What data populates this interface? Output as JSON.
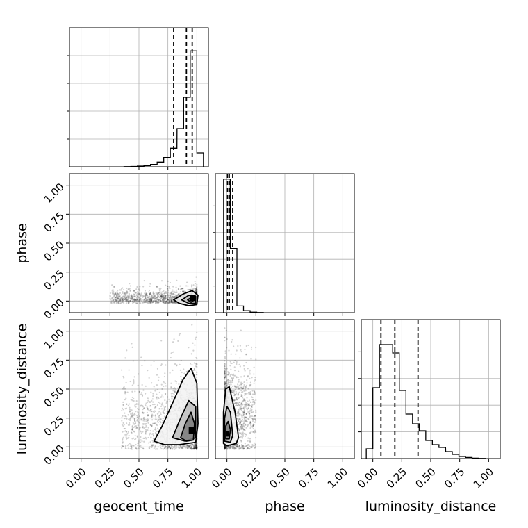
{
  "chart_data": {
    "type": "corner",
    "parameters": [
      "geocent_time",
      "phase",
      "luminosity_distance"
    ],
    "ticks": [
      0.0,
      0.25,
      0.5,
      0.75,
      1.0
    ],
    "tick_labels": [
      "0.00",
      "0.25",
      "0.50",
      "0.75",
      "1.00"
    ],
    "range": [
      -0.1,
      1.1
    ],
    "grid": true,
    "histograms": [
      {
        "parameter": "geocent_time",
        "bin_width": 0.0571,
        "bins": [
          {
            "x0": 0.371,
            "count": 0.001
          },
          {
            "x0": 0.429,
            "count": 0.003
          },
          {
            "x0": 0.486,
            "count": 0.006
          },
          {
            "x0": 0.543,
            "count": 0.01
          },
          {
            "x0": 0.6,
            "count": 0.02
          },
          {
            "x0": 0.657,
            "count": 0.04
          },
          {
            "x0": 0.714,
            "count": 0.08
          },
          {
            "x0": 0.771,
            "count": 0.16
          },
          {
            "x0": 0.829,
            "count": 0.33
          },
          {
            "x0": 0.886,
            "count": 0.6
          },
          {
            "x0": 0.943,
            "count": 1.0
          },
          {
            "x0": 1.0,
            "count": 0.12
          }
        ],
        "ymax": 1.2,
        "quantiles": [
          0.8,
          0.91,
          0.96
        ]
      },
      {
        "parameter": "phase",
        "bin_width": 0.0571,
        "bins": [
          {
            "x0": -0.029,
            "count": 1.0
          },
          {
            "x0": 0.029,
            "count": 0.48
          },
          {
            "x0": 0.086,
            "count": 0.05
          },
          {
            "x0": 0.143,
            "count": 0.015
          },
          {
            "x0": 0.2,
            "count": 0.004
          },
          {
            "x0": 0.257,
            "count": 0.001
          }
        ],
        "ymax": 1.04,
        "quantiles": [
          0.005,
          0.02,
          0.05
        ]
      },
      {
        "parameter": "luminosity_distance",
        "bin_width": 0.0571,
        "bins": [
          {
            "x0": -0.057,
            "count": 0.07
          },
          {
            "x0": 0.0,
            "count": 0.51
          },
          {
            "x0": 0.057,
            "count": 0.82
          },
          {
            "x0": 0.114,
            "count": 0.82
          },
          {
            "x0": 0.171,
            "count": 0.76
          },
          {
            "x0": 0.229,
            "count": 0.49
          },
          {
            "x0": 0.286,
            "count": 0.32
          },
          {
            "x0": 0.343,
            "count": 0.25
          },
          {
            "x0": 0.4,
            "count": 0.2
          },
          {
            "x0": 0.457,
            "count": 0.13
          },
          {
            "x0": 0.514,
            "count": 0.1
          },
          {
            "x0": 0.571,
            "count": 0.08
          },
          {
            "x0": 0.629,
            "count": 0.05
          },
          {
            "x0": 0.686,
            "count": 0.03
          },
          {
            "x0": 0.743,
            "count": 0.015
          },
          {
            "x0": 0.8,
            "count": 0.008
          },
          {
            "x0": 0.857,
            "count": 0.003
          },
          {
            "x0": 0.914,
            "count": 0.001
          }
        ],
        "ymax": 1.0,
        "quantiles": [
          0.07,
          0.19,
          0.39
        ]
      }
    ],
    "density_panels": [
      {
        "x": "geocent_time",
        "y": "phase",
        "cloud": {
          "x_min": 0.25,
          "x_max": 1.0,
          "x_peak": 0.95,
          "y_center": 0.02,
          "y_spread": 0.06,
          "points": 1400
        },
        "contours": [
          [
            [
              0.8,
              0.01
            ],
            [
              0.88,
              0.06
            ],
            [
              0.96,
              0.09
            ],
            [
              1.01,
              0.05
            ],
            [
              1.0,
              -0.03
            ],
            [
              0.93,
              -0.04
            ],
            [
              0.85,
              -0.02
            ]
          ],
          [
            [
              0.87,
              0.01
            ],
            [
              0.93,
              0.05
            ],
            [
              0.99,
              0.04
            ],
            [
              0.99,
              -0.02
            ],
            [
              0.93,
              -0.02
            ]
          ],
          [
            [
              0.92,
              0.01
            ],
            [
              0.95,
              0.03
            ],
            [
              0.98,
              0.01
            ],
            [
              0.95,
              -0.01
            ]
          ]
        ],
        "core": [
          {
            "x": 0.94,
            "y": 0.0,
            "w": 0.05,
            "h": 0.05
          }
        ]
      },
      {
        "x": "geocent_time",
        "y": "luminosity_distance",
        "cloud": {
          "x_min": 0.35,
          "x_max": 1.0,
          "x_peak": 0.95,
          "y_center": 0.22,
          "y_spread": 0.28,
          "points": 1600
        },
        "contours": [
          [
            [
              0.63,
              0.05
            ],
            [
              0.7,
              0.18
            ],
            [
              0.8,
              0.4
            ],
            [
              0.88,
              0.58
            ],
            [
              0.95,
              0.68
            ],
            [
              1.0,
              0.55
            ],
            [
              1.01,
              0.2
            ],
            [
              0.99,
              0.04
            ],
            [
              0.85,
              0.02
            ],
            [
              0.72,
              0.02
            ]
          ],
          [
            [
              0.79,
              0.08
            ],
            [
              0.86,
              0.25
            ],
            [
              0.93,
              0.4
            ],
            [
              0.99,
              0.35
            ],
            [
              0.99,
              0.08
            ],
            [
              0.9,
              0.05
            ]
          ],
          [
            [
              0.86,
              0.08
            ],
            [
              0.9,
              0.2
            ],
            [
              0.95,
              0.3
            ],
            [
              0.98,
              0.2
            ],
            [
              0.97,
              0.06
            ],
            [
              0.91,
              0.05
            ]
          ]
        ],
        "core": [
          {
            "x": 0.93,
            "y": 0.11,
            "w": 0.05,
            "h": 0.06
          }
        ]
      },
      {
        "x": "phase",
        "y": "luminosity_distance",
        "cloud": {
          "x_min": -0.02,
          "x_max": 0.25,
          "x_peak": 0.0,
          "y_center": 0.28,
          "y_spread": 0.3,
          "points": 1500
        },
        "contours": [
          [
            [
              -0.03,
              0.03
            ],
            [
              -0.03,
              0.3
            ],
            [
              -0.01,
              0.5
            ],
            [
              0.02,
              0.52
            ],
            [
              0.07,
              0.3
            ],
            [
              0.1,
              0.08
            ],
            [
              0.08,
              0.03
            ],
            [
              0.0,
              0.01
            ]
          ],
          [
            [
              -0.02,
              0.05
            ],
            [
              -0.02,
              0.25
            ],
            [
              0.0,
              0.35
            ],
            [
              0.03,
              0.3
            ],
            [
              0.05,
              0.1
            ],
            [
              0.03,
              0.04
            ]
          ],
          [
            [
              -0.01,
              0.07
            ],
            [
              -0.01,
              0.18
            ],
            [
              0.01,
              0.22
            ],
            [
              0.03,
              0.15
            ],
            [
              0.02,
              0.07
            ]
          ]
        ],
        "core": [
          {
            "x": -0.01,
            "y": 0.09,
            "w": 0.03,
            "h": 0.05
          }
        ]
      }
    ]
  }
}
